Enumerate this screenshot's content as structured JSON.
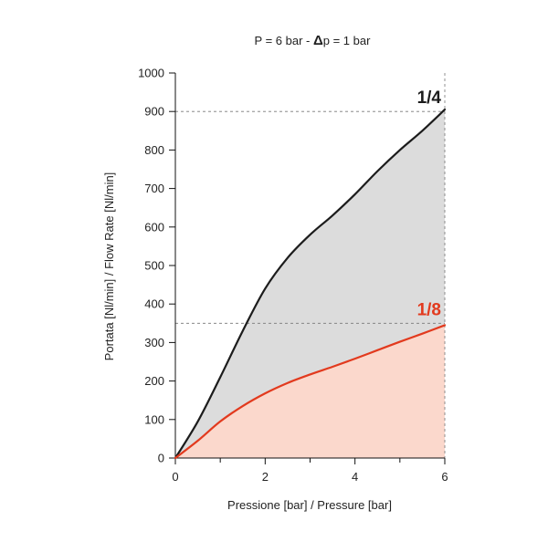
{
  "chart_data": {
    "type": "area",
    "title": {
      "prefix": "P = 6 bar - ",
      "delta": "Δ",
      "suffix": "p = 1 bar"
    },
    "xlabel": "Pressione [bar] / Pressure [bar]",
    "ylabel": "Portata [Nl/min] / Flow Rate [Nl/min]",
    "xlim": [
      0,
      6
    ],
    "ylim": [
      0,
      1000
    ],
    "x_ticks": [
      0,
      2,
      4,
      6
    ],
    "x_minor_ticks": [
      1,
      3,
      5
    ],
    "y_ticks": [
      0,
      100,
      200,
      300,
      400,
      500,
      600,
      700,
      800,
      900,
      1000
    ],
    "grid": false,
    "series": [
      {
        "name": "1/4",
        "line_color": "#1c1c1c",
        "label_color": "#1c1c1c",
        "fill_color": "#dcdcdc",
        "reference_line_y": 900,
        "points": [
          [
            0,
            0
          ],
          [
            0.5,
            95
          ],
          [
            1,
            210
          ],
          [
            1.5,
            330
          ],
          [
            2,
            440
          ],
          [
            2.5,
            520
          ],
          [
            3,
            580
          ],
          [
            3.5,
            630
          ],
          [
            4,
            685
          ],
          [
            4.5,
            745
          ],
          [
            5,
            800
          ],
          [
            5.5,
            850
          ],
          [
            6,
            905
          ]
        ]
      },
      {
        "name": "1/8",
        "line_color": "#e23a1e",
        "label_color": "#e23a1e",
        "fill_color": "#fbd8cc",
        "reference_line_y": 350,
        "points": [
          [
            0,
            0
          ],
          [
            0.5,
            45
          ],
          [
            1,
            95
          ],
          [
            1.5,
            135
          ],
          [
            2,
            168
          ],
          [
            2.5,
            195
          ],
          [
            3,
            217
          ],
          [
            3.5,
            237
          ],
          [
            4,
            258
          ],
          [
            4.5,
            280
          ],
          [
            5,
            302
          ],
          [
            5.5,
            323
          ],
          [
            6,
            345
          ]
        ]
      }
    ]
  }
}
